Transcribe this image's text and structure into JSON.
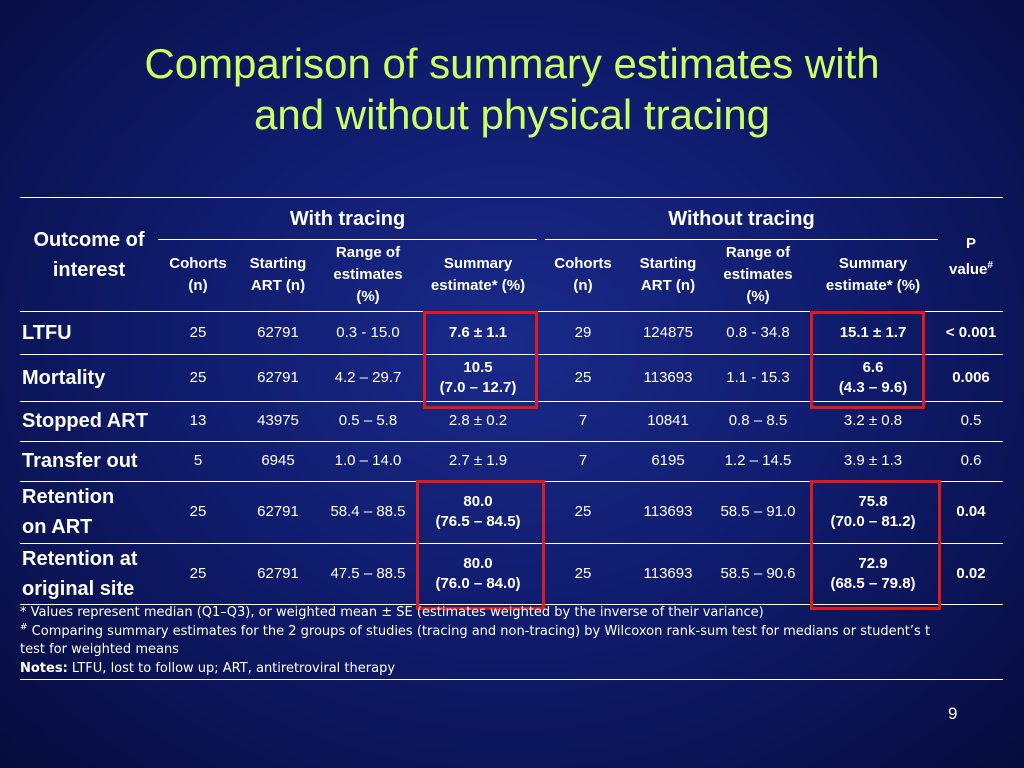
{
  "title": {
    "line1": "Comparison of summary estimates with",
    "line2": "and without physical tracing"
  },
  "table": {
    "outcome_header": {
      "line1": "Outcome of",
      "line2": "interest"
    },
    "group_with": "With tracing",
    "group_without": "Without tracing",
    "p_header": {
      "line1": "P",
      "line2": "value",
      "sup": "#"
    },
    "sub_headers": [
      {
        "l1": "Cohorts",
        "l2": "(n)"
      },
      {
        "l1": "Starting",
        "l2": "ART (n)"
      },
      {
        "l1": "Range of",
        "l2": "estimates",
        "l3": "(%)"
      },
      {
        "l1": "Summary",
        "l2": "estimate* (%)"
      },
      {
        "l1": "Cohorts",
        "l2": "(n)"
      },
      {
        "l1": "Starting",
        "l2": "ART (n)"
      },
      {
        "l1": "Range of",
        "l2": "estimates",
        "l3": "(%)"
      },
      {
        "l1": "Summary",
        "l2": "estimate* (%)"
      }
    ],
    "rows": [
      {
        "outcome": "LTFU",
        "wc": "25",
        "ws": "62791",
        "wr": "0.3 - 15.0",
        "we1": "7.6 ± 1.1",
        "we2": "",
        "oc": "29",
        "os": "124875",
        "or": "0.8 - 34.8",
        "oe1": "15.1 ± 1.7",
        "oe2": "",
        "p": "< 0.001"
      },
      {
        "outcome": "Mortality",
        "wc": "25",
        "ws": "62791",
        "wr": "4.2 – 29.7",
        "we1": "10.5",
        "we2": "(7.0 – 12.7)",
        "oc": "25",
        "os": "113693",
        "or": "1.1 - 15.3",
        "oe1": "6.6",
        "oe2": "(4.3 – 9.6)",
        "p": "0.006"
      },
      {
        "outcome": "Stopped ART",
        "wc": "13",
        "ws": "43975",
        "wr": "0.5 – 5.8",
        "we1": "2.8 ± 0.2",
        "we2": "",
        "oc": "7",
        "os": "10841",
        "or": "0.8 – 8.5",
        "oe1": "3.2 ± 0.8",
        "oe2": "",
        "p": "0.5"
      },
      {
        "outcome": "Transfer out",
        "wc": "5",
        "ws": "6945",
        "wr": "1.0 – 14.0",
        "we1": "2.7 ± 1.9",
        "we2": "",
        "oc": "7",
        "os": "6195",
        "or": "1.2 – 14.5",
        "oe1": "3.9 ± 1.3",
        "oe2": "",
        "p": "0.6"
      },
      {
        "outcome": "Retention on ART",
        "wc": "25",
        "ws": "62791",
        "wr": "58.4 – 88.5",
        "we1": "80.0",
        "we2": "(76.5 – 84.5)",
        "oc": "25",
        "os": "113693",
        "or": "58.5 – 91.0",
        "oe1": "75.8",
        "oe2": "(70.0 – 81.2)",
        "p": "0.04"
      },
      {
        "outcome": "Retention at original site",
        "wc": "25",
        "ws": "62791",
        "wr": "47.5 – 88.5",
        "we1": "80.0",
        "we2": "(76.0 – 84.0)",
        "oc": "25",
        "os": "113693",
        "or": "58.5 – 90.6",
        "oe1": "72.9",
        "oe2": "(68.5 – 79.8)",
        "p": "0.02"
      }
    ],
    "outcome_lines": {
      "r4_l1": "Retention",
      "r4_l2": "on ART",
      "r5_l1": "Retention at",
      "r5_l2": "original site"
    }
  },
  "notes": {
    "line1": "* Values represent median (Q1–Q3), or weighted mean ± SE (estimates weighted by the inverse of their variance)",
    "line2_sup": "#",
    "line2": " Comparing summary estimates for the 2 groups of studies (tracing and non-tracing) by Wilcoxon rank-sum test for medians or student’s t",
    "line3": "test for weighted means",
    "notes_label": "Notes:",
    "notes_text": " LTFU, lost to follow up; ART, antiretroviral therapy"
  },
  "page_number": "9",
  "colors": {
    "title": "#ccff66",
    "background": "#101c6e",
    "highlight_box": "#e01a1a",
    "text": "#ffffff"
  }
}
